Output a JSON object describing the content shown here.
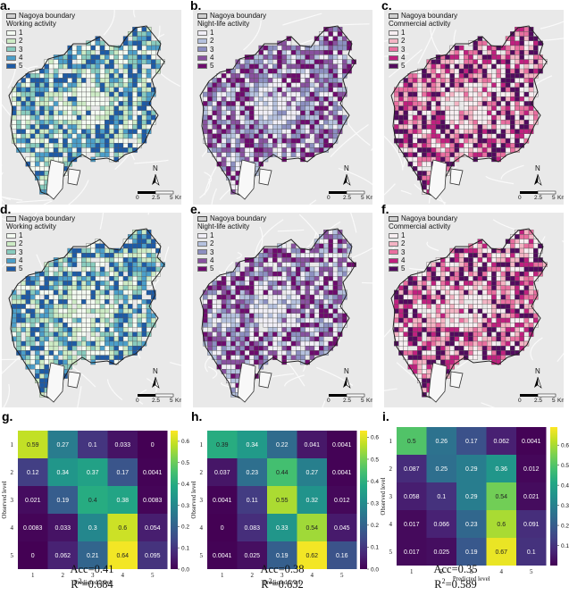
{
  "boundary_label": "Nagoya boundary",
  "levels": [
    "1",
    "2",
    "3",
    "4",
    "5"
  ],
  "north_label": "N",
  "scale_labels": [
    "0",
    "2.5",
    "5"
  ],
  "scale_unit": "Km",
  "palettes": {
    "working": [
      "#f4fbf2",
      "#cdebc5",
      "#88cbbe",
      "#4b9ec9",
      "#1e5ba6"
    ],
    "nightlife": [
      "#f0eef6",
      "#b5c1de",
      "#8c8fc1",
      "#88519f",
      "#6e0b6e"
    ],
    "commercial": [
      "#f7eef1",
      "#f4b4c4",
      "#e96fa0",
      "#c0207f",
      "#520b5e"
    ]
  },
  "maps": [
    {
      "letter": "a.",
      "activity": "Working activity",
      "palette": "working",
      "seed": 11
    },
    {
      "letter": "b.",
      "activity": "Night-life activity",
      "palette": "nightlife",
      "seed": 23
    },
    {
      "letter": "c.",
      "activity": "Commercial activity",
      "palette": "commercial",
      "seed": 37
    },
    {
      "letter": "d.",
      "activity": "Working activity",
      "palette": "working",
      "seed": 51
    },
    {
      "letter": "e.",
      "activity": "Night-life activity",
      "palette": "nightlife",
      "seed": 67
    },
    {
      "letter": "f.",
      "activity": "Commercial activity",
      "palette": "commercial",
      "seed": 83
    }
  ],
  "chart_data": [
    {
      "type": "heatmap",
      "letter": "g.",
      "xlabel": "Predicted level",
      "ylabel": "Observed level",
      "x": [
        "1",
        "2",
        "3",
        "4",
        "5"
      ],
      "y": [
        "1",
        "2",
        "3",
        "4",
        "5"
      ],
      "values": [
        [
          "0.59",
          "0.27",
          "0.1",
          "0.033",
          "0"
        ],
        [
          "0.12",
          "0.34",
          "0.37",
          "0.17",
          "0.0041"
        ],
        [
          "0.021",
          "0.19",
          "0.4",
          "0.38",
          "0.0083"
        ],
        [
          "0.0083",
          "0.033",
          "0.3",
          "0.6",
          "0.054"
        ],
        [
          "0",
          "0.062",
          "0.21",
          "0.64",
          "0.095"
        ]
      ],
      "colorbar_ticks": [
        "0.0",
        "0.1",
        "0.2",
        "0.3",
        "0.4",
        "0.5",
        "0.6"
      ],
      "vmin": 0,
      "vmax": 0.65,
      "acc": "Acc=0.41",
      "r2_prefix": "R",
      "r2_value": "=0.684"
    },
    {
      "type": "heatmap",
      "letter": "h.",
      "xlabel": "Predicted level",
      "ylabel": "Observed level",
      "x": [
        "1",
        "2",
        "3",
        "4",
        "5"
      ],
      "y": [
        "1",
        "2",
        "3",
        "4",
        "5"
      ],
      "values": [
        [
          "0.39",
          "0.34",
          "0.22",
          "0.041",
          "0.0041"
        ],
        [
          "0.037",
          "0.23",
          "0.44",
          "0.27",
          "0.0041"
        ],
        [
          "0.0041",
          "0.11",
          "0.55",
          "0.32",
          "0.012"
        ],
        [
          "0",
          "0.083",
          "0.33",
          "0.54",
          "0.045"
        ],
        [
          "0.0041",
          "0.025",
          "0.19",
          "0.62",
          "0.16"
        ]
      ],
      "colorbar_ticks": [
        "0.0",
        "0.1",
        "0.2",
        "0.3",
        "0.4",
        "0.5",
        "0.6"
      ],
      "vmin": 0,
      "vmax": 0.63,
      "acc": "Acc=0.38",
      "r2_prefix": "R",
      "r2_value": "=0.632"
    },
    {
      "type": "heatmap",
      "letter": "i.",
      "xlabel": "Predicted level",
      "ylabel": "Observed level",
      "x": [
        "1",
        "2",
        "3",
        "4",
        "5"
      ],
      "y": [
        "1",
        "2",
        "3",
        "4",
        "5"
      ],
      "values": [
        [
          "0.5",
          "0.26",
          "0.17",
          "0.062",
          "0.0041"
        ],
        [
          "0.087",
          "0.25",
          "0.29",
          "0.36",
          "0.012"
        ],
        [
          "0.058",
          "0.1",
          "0.29",
          "0.54",
          "0.021"
        ],
        [
          "0.017",
          "0.066",
          "0.23",
          "0.6",
          "0.091"
        ],
        [
          "0.017",
          "0.025",
          "0.19",
          "0.67",
          "0.1"
        ]
      ],
      "colorbar_ticks": [
        "0.1",
        "0.2",
        "0.3",
        "0.4",
        "0.5",
        "0.6"
      ],
      "vmin": 0,
      "vmax": 0.69,
      "acc": "Acc=0.35",
      "r2_prefix": "R",
      "r2_value": "=0.589"
    }
  ]
}
